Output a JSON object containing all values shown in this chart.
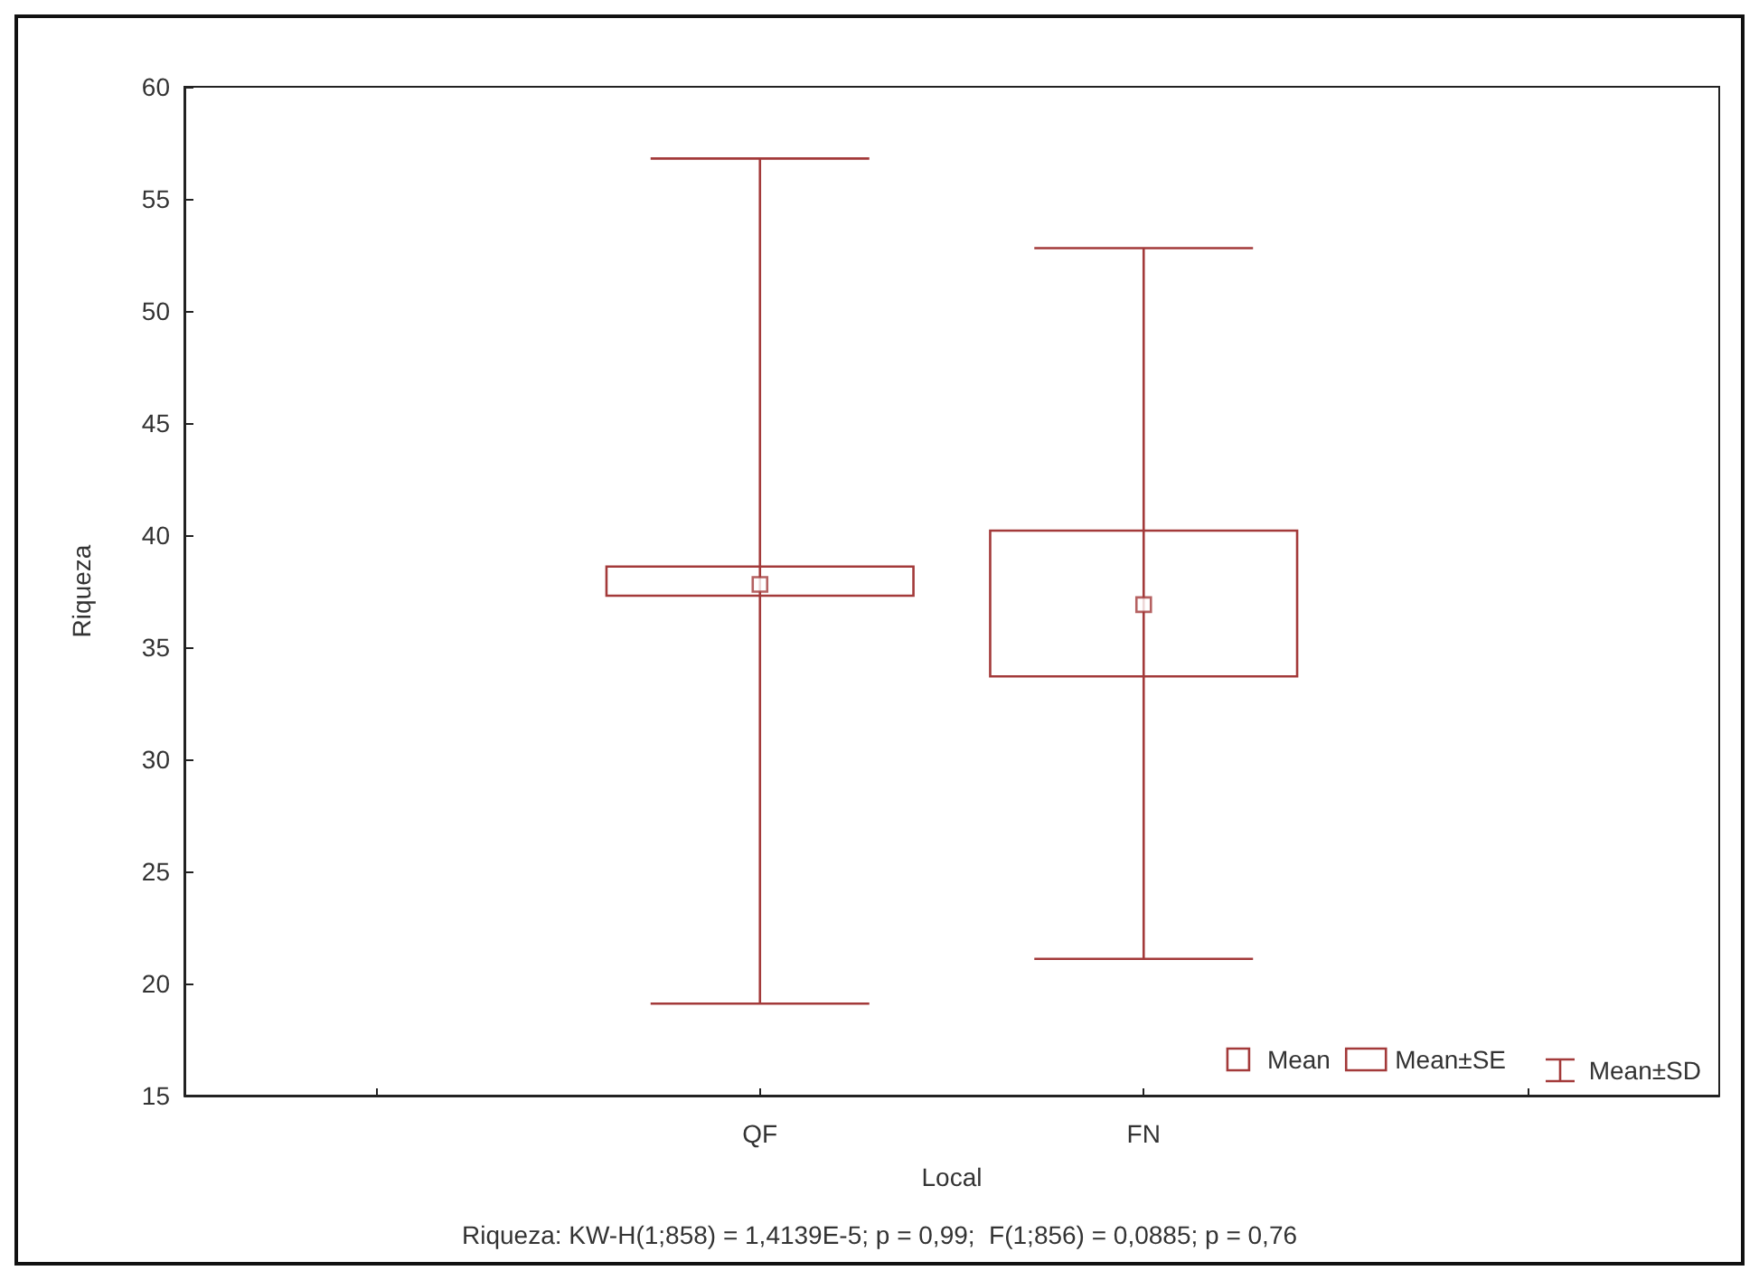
{
  "chart_data": {
    "type": "scatter",
    "xlabel": "Local",
    "ylabel": "Riqueza",
    "categories": [
      null,
      "QF",
      "FN",
      null
    ],
    "series": [
      {
        "name": "Mean",
        "color": "#a33a3a",
        "marker": "square",
        "values": [
          null,
          37.8,
          36.9,
          null
        ],
        "errors": [
          null,
          [
            19.1,
            56.8
          ],
          [
            21.1,
            52.8
          ],
          null
        ]
      },
      {
        "name": "Mean±SE",
        "type": "bar",
        "color": "#a33a3a",
        "base": [
          null,
          37.3,
          33.7,
          null
        ],
        "values": [
          null,
          1.3,
          6.5,
          null
        ]
      }
    ],
    "ylim": [
      15,
      60
    ],
    "yticks": [
      15,
      20,
      25,
      30,
      35,
      40,
      45,
      50,
      55,
      60
    ],
    "grid": false,
    "legend": "bottom right",
    "annotations": [
      "Riqueza: KW-H(1;858) = 1,4139E-5; p = 0,99;  F(1;856) = 0,0885; p = 0,76",
      "Mean±SD"
    ]
  }
}
